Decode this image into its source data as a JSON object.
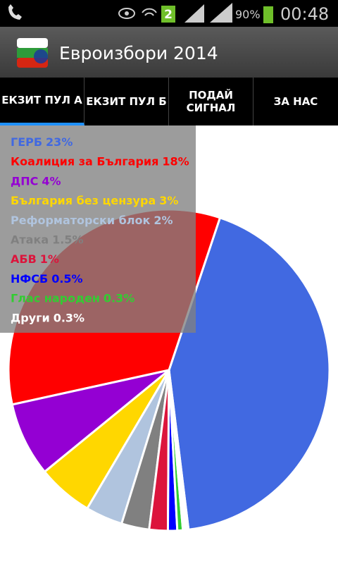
{
  "status_bar": {
    "notification_count": "2",
    "battery": "90%",
    "time": "00:48"
  },
  "app_bar": {
    "title": "Евроизбори 2014"
  },
  "tabs": [
    "ЕКЗИТ ПУЛ А",
    "ЕКЗИТ ПУЛ Б",
    "ПОДАЙ СИГНАЛ",
    "ЗА НАС"
  ],
  "chart_data": {
    "type": "pie",
    "categories": [
      "ГЕРБ",
      "Коалиция за България",
      "ДПС",
      "България без цензура",
      "Реформаторски блок",
      "Атака",
      "АБВ",
      "НФСБ",
      "Глас народен",
      "Други"
    ],
    "values": [
      23,
      18,
      4,
      3,
      2,
      1.5,
      1,
      0.5,
      0.3,
      0.3
    ],
    "value_labels": [
      "23%",
      "18%",
      "4%",
      "3%",
      "2%",
      "1.5%",
      "1%",
      "0.5%",
      "0.3%",
      "0.3%"
    ],
    "colors": [
      "#4169e1",
      "#ff0000",
      "#9400d3",
      "#ffd700",
      "#b0c4de",
      "#808080",
      "#dc143c",
      "#0000ff",
      "#32cd32",
      "#ffffff"
    ]
  }
}
